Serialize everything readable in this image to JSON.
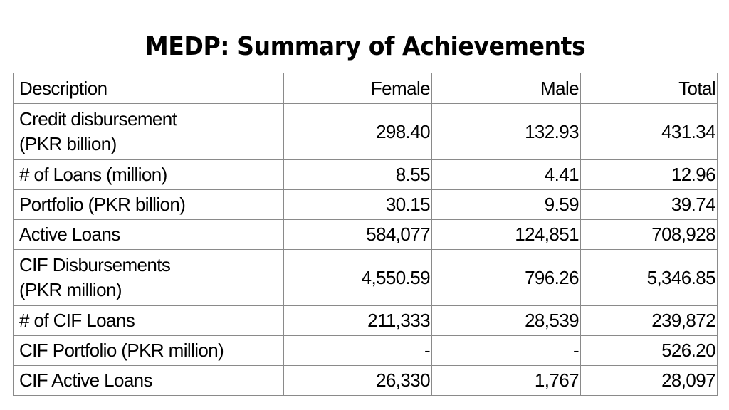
{
  "title": "MEDP: Summary of Achievements",
  "table": {
    "headers": [
      "Description",
      "Female",
      "Male",
      "Total"
    ],
    "rows": [
      {
        "description": [
          "Credit disbursement",
          "(PKR billion)"
        ],
        "female": "298.40",
        "male": "132.93",
        "total": "431.34"
      },
      {
        "description": [
          "# of Loans (million)"
        ],
        "female": "8.55",
        "male": "4.41",
        "total": "12.96"
      },
      {
        "description": [
          "Portfolio (PKR billion)"
        ],
        "female": "30.15",
        "male": "9.59",
        "total": "39.74"
      },
      {
        "description": [
          "Active Loans"
        ],
        "female": "584,077",
        "male": "124,851",
        "total": "708,928"
      },
      {
        "description": [
          "CIF Disbursements",
          "(PKR million)"
        ],
        "female": "4,550.59",
        "male": "796.26",
        "total": "5,346.85"
      },
      {
        "description": [
          "# of CIF Loans"
        ],
        "female": "211,333",
        "male": "28,539",
        "total": "239,872"
      },
      {
        "description": [
          "CIF Portfolio (PKR million)"
        ],
        "female": "-",
        "male": "-",
        "total": "526.20"
      },
      {
        "description": [
          "CIF Active Loans"
        ],
        "female": "26,330",
        "male": "1,767",
        "total": "28,097"
      }
    ]
  },
  "colors": {
    "text": "#000000",
    "border": "#8a8a8a",
    "background": "#ffffff"
  }
}
